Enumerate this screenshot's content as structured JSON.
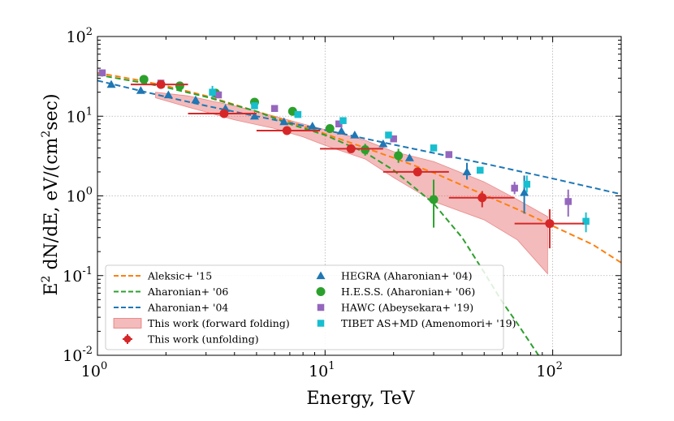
{
  "chart_data": {
    "type": "scatter",
    "xscale": "log",
    "yscale": "log",
    "xlim": [
      1,
      200
    ],
    "ylim": [
      0.01,
      100
    ],
    "grid": true,
    "legend_location": "lower-left",
    "xlabel": "Energy, TeV",
    "ylabel": "E² dN/dE, eV/(cm²sec)",
    "x_ticks": [
      {
        "value": 1,
        "base": "10",
        "exp": "0"
      },
      {
        "value": 10,
        "base": "10",
        "exp": "1"
      },
      {
        "value": 100,
        "base": "10",
        "exp": "2"
      }
    ],
    "y_ticks": [
      {
        "value": 0.01,
        "base": "10",
        "exp": "-2"
      },
      {
        "value": 0.1,
        "base": "10",
        "exp": "-1"
      },
      {
        "value": 1,
        "base": "10",
        "exp": "0"
      },
      {
        "value": 10,
        "base": "10",
        "exp": "1"
      },
      {
        "value": 100,
        "base": "10",
        "exp": "2"
      }
    ],
    "curves": [
      {
        "name": "Aleksic+ '15",
        "color": "#ff7f0e",
        "style": "dashed",
        "x": [
          1,
          1.5,
          2,
          3,
          5,
          7,
          10,
          15,
          20,
          30,
          50,
          70,
          100,
          150,
          200
        ],
        "y": [
          35,
          28.5,
          24,
          18,
          11.5,
          8.5,
          6,
          4,
          3,
          1.95,
          1.03,
          0.68,
          0.42,
          0.245,
          0.145
        ]
      },
      {
        "name": "Aharonian+ '06",
        "color": "#2ca02c",
        "style": "dashed",
        "x": [
          1,
          1.5,
          2,
          3,
          5,
          7,
          10,
          15,
          20,
          30,
          40,
          50,
          60,
          70,
          80,
          90
        ],
        "y": [
          33,
          27,
          23,
          17.5,
          11.5,
          8,
          5.8,
          3.5,
          2.1,
          0.8,
          0.3,
          0.11,
          0.047,
          0.025,
          0.014,
          0.0085
        ]
      },
      {
        "name": "Aharonian+ '04",
        "color": "#1f77b4",
        "style": "dashed",
        "x": [
          1,
          2,
          3,
          5,
          10,
          20,
          50,
          100,
          200
        ],
        "y": [
          28,
          17.5,
          13.5,
          10,
          6.7,
          4.4,
          2.55,
          1.65,
          1.05
        ]
      }
    ],
    "band": {
      "name": "This work (forward folding)",
      "color": "#e05555",
      "x": [
        1.8,
        2.5,
        4,
        6,
        8,
        10,
        15,
        20,
        30,
        50,
        70,
        95
      ],
      "upper": [
        20,
        18,
        13.5,
        10,
        8,
        6.8,
        5,
        3.6,
        2.7,
        1.5,
        0.9,
        0.55
      ],
      "lower": [
        17,
        13,
        9,
        7,
        5.5,
        4.3,
        2.9,
        1.7,
        0.85,
        0.5,
        0.28,
        0.105
      ]
    },
    "series": [
      {
        "name": "HEGRA (Aharonian+ '04)",
        "color": "#1f77b4",
        "marker": "triangle",
        "points": [
          {
            "x": 1.15,
            "y": 25
          },
          {
            "x": 1.55,
            "y": 21
          },
          {
            "x": 2.05,
            "y": 18.5
          },
          {
            "x": 2.7,
            "y": 16
          },
          {
            "x": 3.65,
            "y": 12.5
          },
          {
            "x": 4.9,
            "y": 10
          },
          {
            "x": 6.6,
            "y": 8.5
          },
          {
            "x": 8.8,
            "y": 7.5
          },
          {
            "x": 11.8,
            "y": 6.5
          },
          {
            "x": 13.5,
            "y": 5.8
          },
          {
            "x": 18,
            "y": 4.5
          },
          {
            "x": 23.5,
            "y": 3
          },
          {
            "x": 42,
            "y": 2,
            "ylo": 1.6,
            "yhi": 2.6
          },
          {
            "x": 75,
            "y": 1.1,
            "ylo": 0.6,
            "yhi": 1.8
          }
        ]
      },
      {
        "name": "H.E.S.S. (Aharonian+ '06)",
        "color": "#2ca02c",
        "marker": "circle",
        "points": [
          {
            "x": 1.6,
            "y": 29
          },
          {
            "x": 2.3,
            "y": 24
          },
          {
            "x": 3.3,
            "y": 19.5
          },
          {
            "x": 4.9,
            "y": 15
          },
          {
            "x": 7.2,
            "y": 11.5
          },
          {
            "x": 10.5,
            "y": 7
          },
          {
            "x": 15,
            "y": 3.8,
            "ylo": 3.2,
            "yhi": 4.5
          },
          {
            "x": 21,
            "y": 3.2,
            "ylo": 2.6,
            "yhi": 3.9
          },
          {
            "x": 30,
            "y": 0.9,
            "ylo": 0.4,
            "yhi": 1.6
          }
        ]
      },
      {
        "name": "HAWC (Abeysekara+ '19)",
        "color": "#9467bd",
        "marker": "square",
        "points": [
          {
            "x": 1.05,
            "y": 35
          },
          {
            "x": 1.9,
            "y": 26
          },
          {
            "x": 3.4,
            "y": 18.5
          },
          {
            "x": 6,
            "y": 12.5
          },
          {
            "x": 11.5,
            "y": 8
          },
          {
            "x": 20,
            "y": 5.2
          },
          {
            "x": 35,
            "y": 3.3
          },
          {
            "x": 68,
            "y": 1.25,
            "ylo": 1.05,
            "yhi": 1.5
          },
          {
            "x": 117,
            "y": 0.85,
            "ylo": 0.55,
            "yhi": 1.2
          }
        ]
      },
      {
        "name": "TIBET AS+MD (Amenomori+ '19)",
        "color": "#17becf",
        "marker": "square",
        "points": [
          {
            "x": 3.2,
            "y": 20,
            "ylo": 17,
            "yhi": 24
          },
          {
            "x": 4.9,
            "y": 13.5
          },
          {
            "x": 7.6,
            "y": 10.5
          },
          {
            "x": 12,
            "y": 8.8
          },
          {
            "x": 19,
            "y": 5.8
          },
          {
            "x": 30,
            "y": 4
          },
          {
            "x": 48,
            "y": 2.1
          },
          {
            "x": 77,
            "y": 1.4,
            "ylo": 1.1,
            "yhi": 1.8
          },
          {
            "x": 140,
            "y": 0.48,
            "ylo": 0.35,
            "yhi": 0.62
          }
        ]
      },
      {
        "name": "This work (unfolding)",
        "color": "#d62728",
        "marker": "circle",
        "points": [
          {
            "x": 1.9,
            "y": 25,
            "xlo": 1.4,
            "xhi": 2.5
          },
          {
            "x": 3.6,
            "y": 10.8,
            "xlo": 2.5,
            "xhi": 5,
            "ylo": 9.5,
            "yhi": 12
          },
          {
            "x": 6.8,
            "y": 6.6,
            "xlo": 5,
            "xhi": 9.5,
            "ylo": 6,
            "yhi": 7.2
          },
          {
            "x": 13,
            "y": 3.9,
            "xlo": 9.5,
            "xhi": 18,
            "ylo": 3.6,
            "yhi": 4.2
          },
          {
            "x": 25.5,
            "y": 2,
            "xlo": 18,
            "xhi": 35,
            "ylo": 1.8,
            "yhi": 2.2
          },
          {
            "x": 49,
            "y": 0.95,
            "xlo": 35,
            "xhi": 68,
            "ylo": 0.72,
            "yhi": 1.15
          },
          {
            "x": 97,
            "y": 0.45,
            "xlo": 68,
            "xhi": 137,
            "ylo": 0.22,
            "yhi": 0.68
          }
        ]
      }
    ],
    "legend": [
      {
        "label": "Aleksic+ '15",
        "kind": "line",
        "color": "#ff7f0e"
      },
      {
        "label": "Aharonian+ '06",
        "kind": "line",
        "color": "#2ca02c"
      },
      {
        "label": "Aharonian+ '04",
        "kind": "line",
        "color": "#1f77b4"
      },
      {
        "label": "This work (forward folding)",
        "kind": "band",
        "color": "#e05555"
      },
      {
        "label": "This work (unfolding)",
        "kind": "errpoint",
        "color": "#d62728"
      },
      {
        "label": "HEGRA (Aharonian+ '04)",
        "kind": "triangle",
        "color": "#1f77b4"
      },
      {
        "label": "H.E.S.S. (Aharonian+ '06)",
        "kind": "circle",
        "color": "#2ca02c"
      },
      {
        "label": "HAWC (Abeysekara+ '19)",
        "kind": "square",
        "color": "#9467bd"
      },
      {
        "label": "TIBET AS+MD (Amenomori+ '19)",
        "kind": "square",
        "color": "#17becf"
      }
    ]
  },
  "labels": {
    "xlabel": "Energy, TeV",
    "ylabel_base": "E",
    "ylabel_exp": "2",
    "ylabel_mid": " dN/dE, eV/(cm",
    "ylabel_exp2": "2",
    "ylabel_end": "sec)"
  }
}
